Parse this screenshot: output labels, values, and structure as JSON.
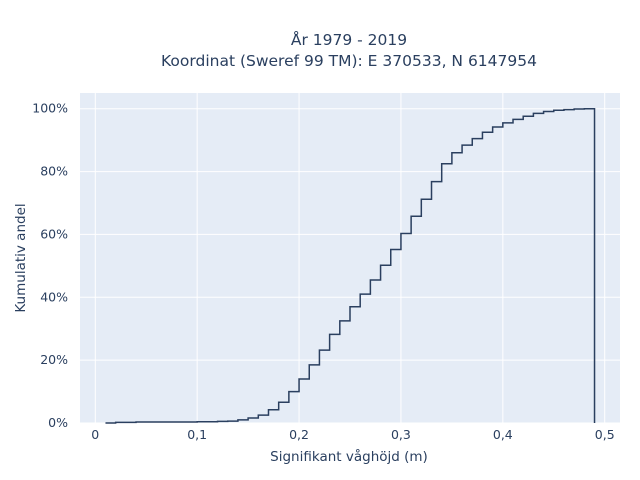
{
  "chart_data": {
    "type": "line",
    "line_shape": "step",
    "title_line1": "År 1979 - 2019",
    "title_line2": "Koordinat (Sweref 99 TM): E 370533, N 6147954",
    "xlabel": "Signifikant våghöjd (m)",
    "ylabel": "Kumulativ andel",
    "xlim": [
      -0.015,
      0.515
    ],
    "ylim": [
      0,
      1.05
    ],
    "x_ticks": [
      0,
      0.1,
      0.2,
      0.3,
      0.4,
      0.5
    ],
    "x_tick_labels": [
      "0",
      "0,1",
      "0,2",
      "0,3",
      "0,4",
      "0,5"
    ],
    "y_ticks": [
      0,
      0.2,
      0.4,
      0.6,
      0.8,
      1.0
    ],
    "y_tick_labels": [
      "0%",
      "20%",
      "40%",
      "60%",
      "80%",
      "100%"
    ],
    "grid": true,
    "legend": "none",
    "colors": {
      "plot_bg": "#e5ecf6",
      "grid": "#ffffff",
      "line": "#2a3f5f",
      "text": "#2a3f5f"
    },
    "series": [
      {
        "x": [
          0.01,
          0.02,
          0.03,
          0.04,
          0.05,
          0.06,
          0.07,
          0.08,
          0.09,
          0.1,
          0.11,
          0.12,
          0.13,
          0.14,
          0.15,
          0.16,
          0.17,
          0.18,
          0.19,
          0.2,
          0.21,
          0.22,
          0.23,
          0.24,
          0.25,
          0.26,
          0.27,
          0.28,
          0.29,
          0.3,
          0.31,
          0.32,
          0.33,
          0.34,
          0.35,
          0.36,
          0.37,
          0.38,
          0.39,
          0.4,
          0.41,
          0.42,
          0.43,
          0.44,
          0.45,
          0.46,
          0.47,
          0.48,
          0.49
        ],
        "y": [
          0.0,
          0.002,
          0.002,
          0.003,
          0.003,
          0.003,
          0.003,
          0.003,
          0.003,
          0.004,
          0.004,
          0.005,
          0.006,
          0.01,
          0.016,
          0.025,
          0.042,
          0.066,
          0.1,
          0.14,
          0.185,
          0.232,
          0.282,
          0.325,
          0.37,
          0.41,
          0.455,
          0.502,
          0.552,
          0.603,
          0.658,
          0.712,
          0.768,
          0.825,
          0.86,
          0.884,
          0.905,
          0.925,
          0.942,
          0.955,
          0.966,
          0.976,
          0.985,
          0.991,
          0.995,
          0.997,
          0.999,
          1.0,
          0.0
        ]
      }
    ]
  }
}
